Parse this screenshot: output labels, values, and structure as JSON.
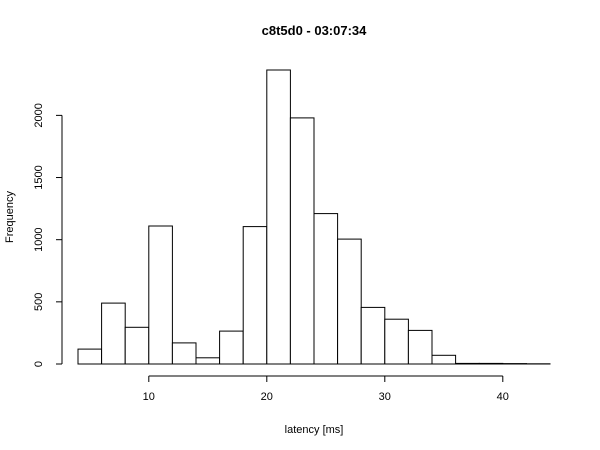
{
  "chart_data": {
    "type": "bar",
    "title": "c8t5d0 - 03:07:34",
    "xlabel": "latency [ms]",
    "ylabel": "Frequency",
    "bin_edges": [
      4,
      6,
      8,
      10,
      12,
      14,
      16,
      18,
      20,
      22,
      24,
      26,
      28,
      30,
      32,
      34,
      36,
      38,
      40,
      42,
      44
    ],
    "values": [
      120,
      490,
      295,
      1110,
      170,
      50,
      265,
      1105,
      2365,
      1980,
      1210,
      1005,
      455,
      360,
      270,
      70,
      5,
      5,
      3,
      2
    ],
    "xlim": [
      4,
      44
    ],
    "ylim": [
      0,
      2365
    ],
    "x_ticks": [
      10,
      20,
      30,
      40
    ],
    "y_ticks": [
      0,
      500,
      1000,
      1500,
      2000
    ],
    "x_tick_labels": [
      "10",
      "20",
      "30",
      "40"
    ],
    "y_tick_labels": [
      "0",
      "500",
      "1000",
      "1500",
      "2000"
    ],
    "grid": false,
    "bar_fill": "#ffffff",
    "bar_stroke": "#000000"
  }
}
